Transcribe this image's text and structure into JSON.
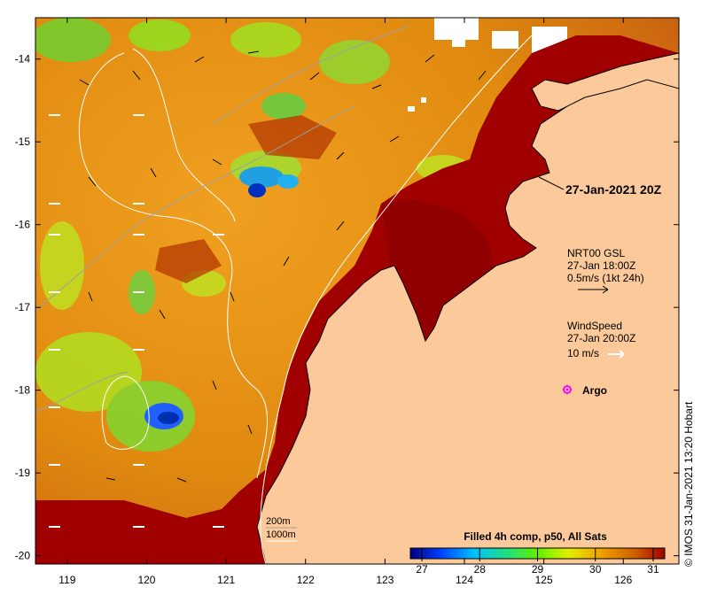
{
  "map": {
    "x_ticks": [
      "119",
      "120",
      "121",
      "122",
      "123",
      "124",
      "125",
      "126"
    ],
    "y_ticks": [
      "-14",
      "-15",
      "-16",
      "-17",
      "-18",
      "-19",
      "-20"
    ],
    "lon_range": [
      118.6,
      126.7
    ],
    "lat_range": [
      -20.1,
      -13.5
    ],
    "land_color": "#fbc99a",
    "warm_sst_color": "#a00000"
  },
  "annotations": {
    "timestamp": "27-Jan-2021 20Z",
    "gsl_title": "NRT00 GSL",
    "gsl_time": "27-Jan 18:00Z",
    "gsl_scale": "0.5m/s (1kt 24h)",
    "wind_title": "WindSpeed",
    "wind_time": "27-Jan 20:00Z",
    "wind_scale": "10 m/s",
    "argo_label": "Argo",
    "argo_color": "#ff00ff",
    "isobath_200": "200m",
    "isobath_1000": "1000m"
  },
  "colorbar": {
    "title": "Filled 4h comp, p50, All Sats",
    "ticks": [
      "27",
      "28",
      "29",
      "30",
      "31"
    ],
    "stops": [
      "#00007f",
      "#0040ff",
      "#00c0ff",
      "#20e080",
      "#60f000",
      "#e0f000",
      "#f0a000",
      "#d06000",
      "#a00000"
    ]
  },
  "credit": "© IMOS 31-Jan-2021 13:20 Hobart"
}
